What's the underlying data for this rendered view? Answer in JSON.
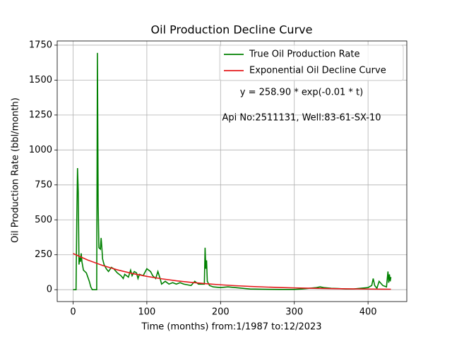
{
  "chart_data": {
    "type": "line",
    "title": "Oil Production Decline Curve",
    "x_label": "Time (months) from:1/1987 to:12/2023",
    "y_label": "Oil Production Rate (bbl/month)",
    "annotations": [
      "y = 258.90 * exp(-0.01 * t)",
      "Api No:2511131, Well:83-61-SX-10"
    ],
    "xlim": [
      -21.55,
      452.55
    ],
    "ylim": [
      -85,
      1780
    ],
    "xticks": [
      0,
      100,
      200,
      300,
      400
    ],
    "yticks": [
      0,
      250,
      500,
      750,
      1000,
      1250,
      1500,
      1750
    ],
    "grid": true,
    "legend": "upper right",
    "series": [
      {
        "name": "True Oil Production Rate",
        "color": "#008000",
        "x": [
          0,
          4,
          5,
          6,
          7,
          8,
          9,
          10,
          11,
          12,
          14,
          18,
          22,
          24,
          26,
          32,
          33,
          34,
          35,
          37,
          38,
          39,
          40,
          42,
          45,
          48,
          52,
          55,
          60,
          65,
          68,
          70,
          75,
          78,
          80,
          83,
          86,
          88,
          90,
          95,
          100,
          105,
          108,
          112,
          115,
          118,
          120,
          125,
          130,
          135,
          140,
          145,
          150,
          160,
          165,
          170,
          178,
          179,
          180,
          181,
          182,
          185,
          190,
          200,
          210,
          220,
          230,
          240,
          260,
          280,
          300,
          310,
          320,
          330,
          335,
          340,
          350,
          360,
          370,
          380,
          390,
          400,
          405,
          407,
          409,
          412,
          415,
          420,
          425,
          427,
          428,
          429,
          430,
          431
        ],
        "values": [
          0,
          0,
          500,
          870,
          700,
          180,
          230,
          200,
          260,
          200,
          140,
          120,
          60,
          20,
          0,
          0,
          1695,
          600,
          300,
          290,
          370,
          300,
          220,
          180,
          150,
          130,
          160,
          150,
          120,
          100,
          80,
          110,
          90,
          140,
          100,
          130,
          120,
          80,
          110,
          100,
          150,
          130,
          100,
          80,
          130,
          80,
          40,
          60,
          40,
          50,
          40,
          50,
          40,
          30,
          60,
          40,
          40,
          300,
          150,
          210,
          60,
          30,
          20,
          15,
          20,
          15,
          10,
          5,
          3,
          2,
          2,
          5,
          10,
          15,
          20,
          15,
          10,
          8,
          5,
          5,
          10,
          15,
          30,
          80,
          30,
          10,
          60,
          30,
          20,
          130,
          50,
          110,
          60,
          90
        ]
      },
      {
        "name": "Exponential Oil Decline Curve",
        "color": "#e41a1c",
        "x": [
          0,
          20,
          40,
          60,
          80,
          100,
          120,
          140,
          160,
          180,
          200,
          220,
          240,
          260,
          280,
          300,
          320,
          340,
          360,
          380,
          400,
          420,
          431
        ],
        "values": [
          258.9,
          212.0,
          173.5,
          142.1,
          116.3,
          95.2,
          78.0,
          63.8,
          52.3,
          42.8,
          35.0,
          28.7,
          23.5,
          19.2,
          15.7,
          12.9,
          10.6,
          8.6,
          7.1,
          5.8,
          4.7,
          3.9,
          3.5
        ]
      }
    ]
  }
}
